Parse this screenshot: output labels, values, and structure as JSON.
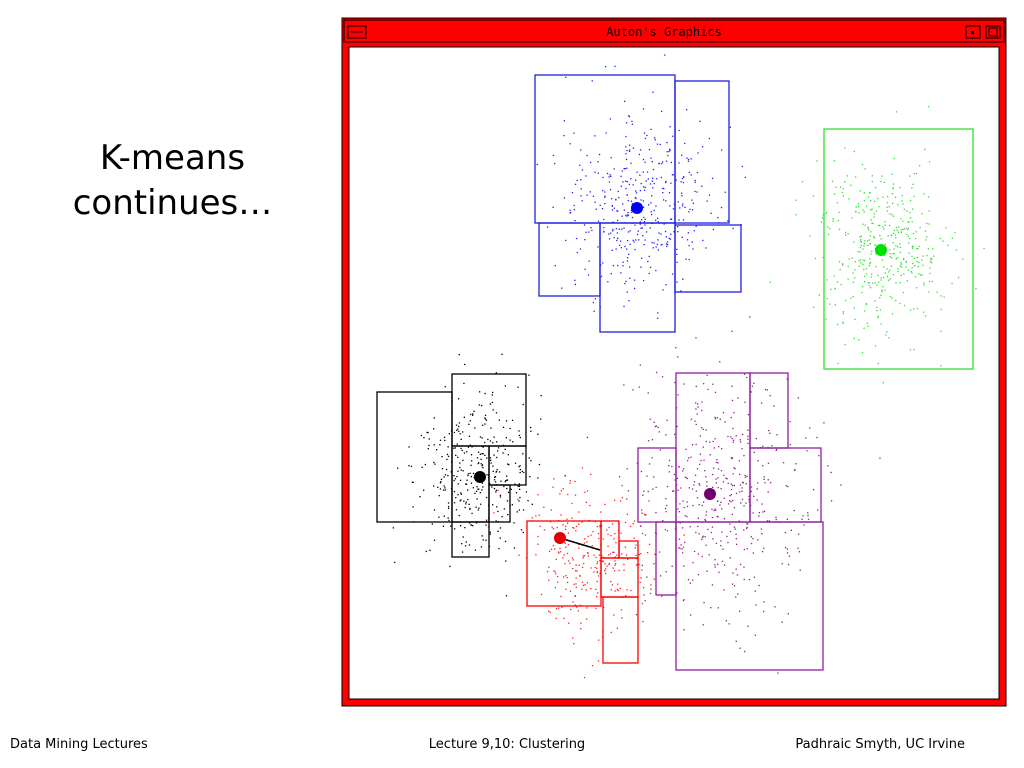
{
  "slide": {
    "title_lines": [
      "K-means",
      "continues…"
    ]
  },
  "window": {
    "title": "Auton's Graphics"
  },
  "footer": {
    "left": "Data Mining Lectures",
    "center": "Lecture 9,10: Clustering",
    "right": "Padhraic Smyth, UC Irvine"
  }
}
